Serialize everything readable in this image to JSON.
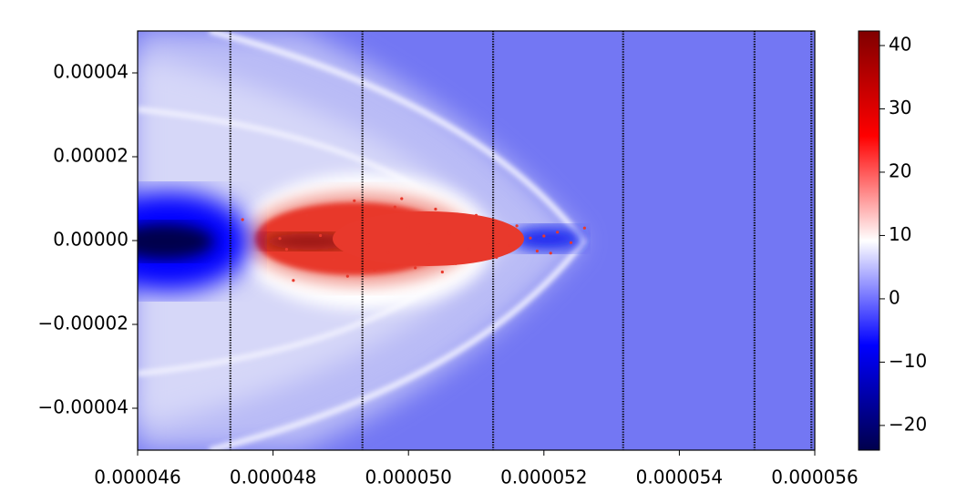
{
  "chart_data": {
    "type": "scatter",
    "xlim": [
      4.6e-05,
      5.6e-05
    ],
    "ylim": [
      -5e-05,
      5e-05
    ],
    "xticks": [
      4.6e-05,
      4.8e-05,
      {
        "value": 5e-05,
        "label": "0.000050"
      },
      5.2e-05,
      5.4e-05,
      5.6e-05
    ],
    "yticks": [
      {
        "value": -4e-05,
        "label": "−0.00004"
      },
      {
        "value": -2e-05,
        "label": "−0.00002"
      },
      {
        "value": 0,
        "label": "0.00000"
      },
      2e-05,
      4e-05
    ],
    "vlines": [
      4.737e-05,
      4.932e-05,
      5.125e-05,
      5.317e-05,
      5.511e-05,
      5.595e-05
    ],
    "vline_color": "#000000",
    "color": "#e8392c",
    "x": [
      4.755e-05,
      4.82e-05,
      4.85e-05,
      4.89e-05,
      4.92e-05,
      4.95e-05,
      4.98e-05,
      5.01e-05,
      5.04e-05,
      5.07e-05,
      5.1e-05,
      5.13e-05,
      5.16e-05,
      5.19e-05,
      5.22e-05,
      5.24e-05,
      5.26e-05,
      4.81e-05,
      4.87e-05,
      4.9e-05,
      4.94e-05,
      4.97e-05,
      5e-05,
      5.03e-05,
      5.06e-05,
      5.09e-05,
      5.12e-05,
      5.15e-05,
      5.18e-05,
      5.2e-05,
      4.91e-05,
      4.83e-05,
      5.05e-05,
      4.99e-05,
      5.21e-05
    ],
    "y": [
      5e-06,
      -2.1e-06,
      6e-06,
      -4.5e-06,
      9.5e-06,
      -7e-06,
      8e-06,
      -6.5e-06,
      7.5e-06,
      -5.5e-06,
      6e-06,
      -4e-06,
      3.5e-06,
      -2.5e-06,
      2e-06,
      -5e-07,
      3e-06,
      5e-07,
      1.2e-06,
      -1.5e-06,
      2.5e-06,
      -2.8e-06,
      3.2e-06,
      -1e-06,
      1.8e-06,
      -2e-06,
      8e-07,
      -1.2e-06,
      6e-07,
      1.1e-06,
      -8.5e-06,
      -9.5e-06,
      -7.5e-06,
      1e-05,
      -3e-06
    ],
    "colorbar": {
      "clim": [
        -23.9,
        42.3
      ],
      "ticks": [
        {
          "value": -20,
          "label": "−20"
        },
        {
          "value": -10,
          "label": "−10"
        },
        0,
        10,
        20,
        30,
        40
      ],
      "colormap": [
        "#00004c",
        "#0000ff",
        "#ffffff",
        "#ff0000",
        "#800000"
      ]
    }
  }
}
